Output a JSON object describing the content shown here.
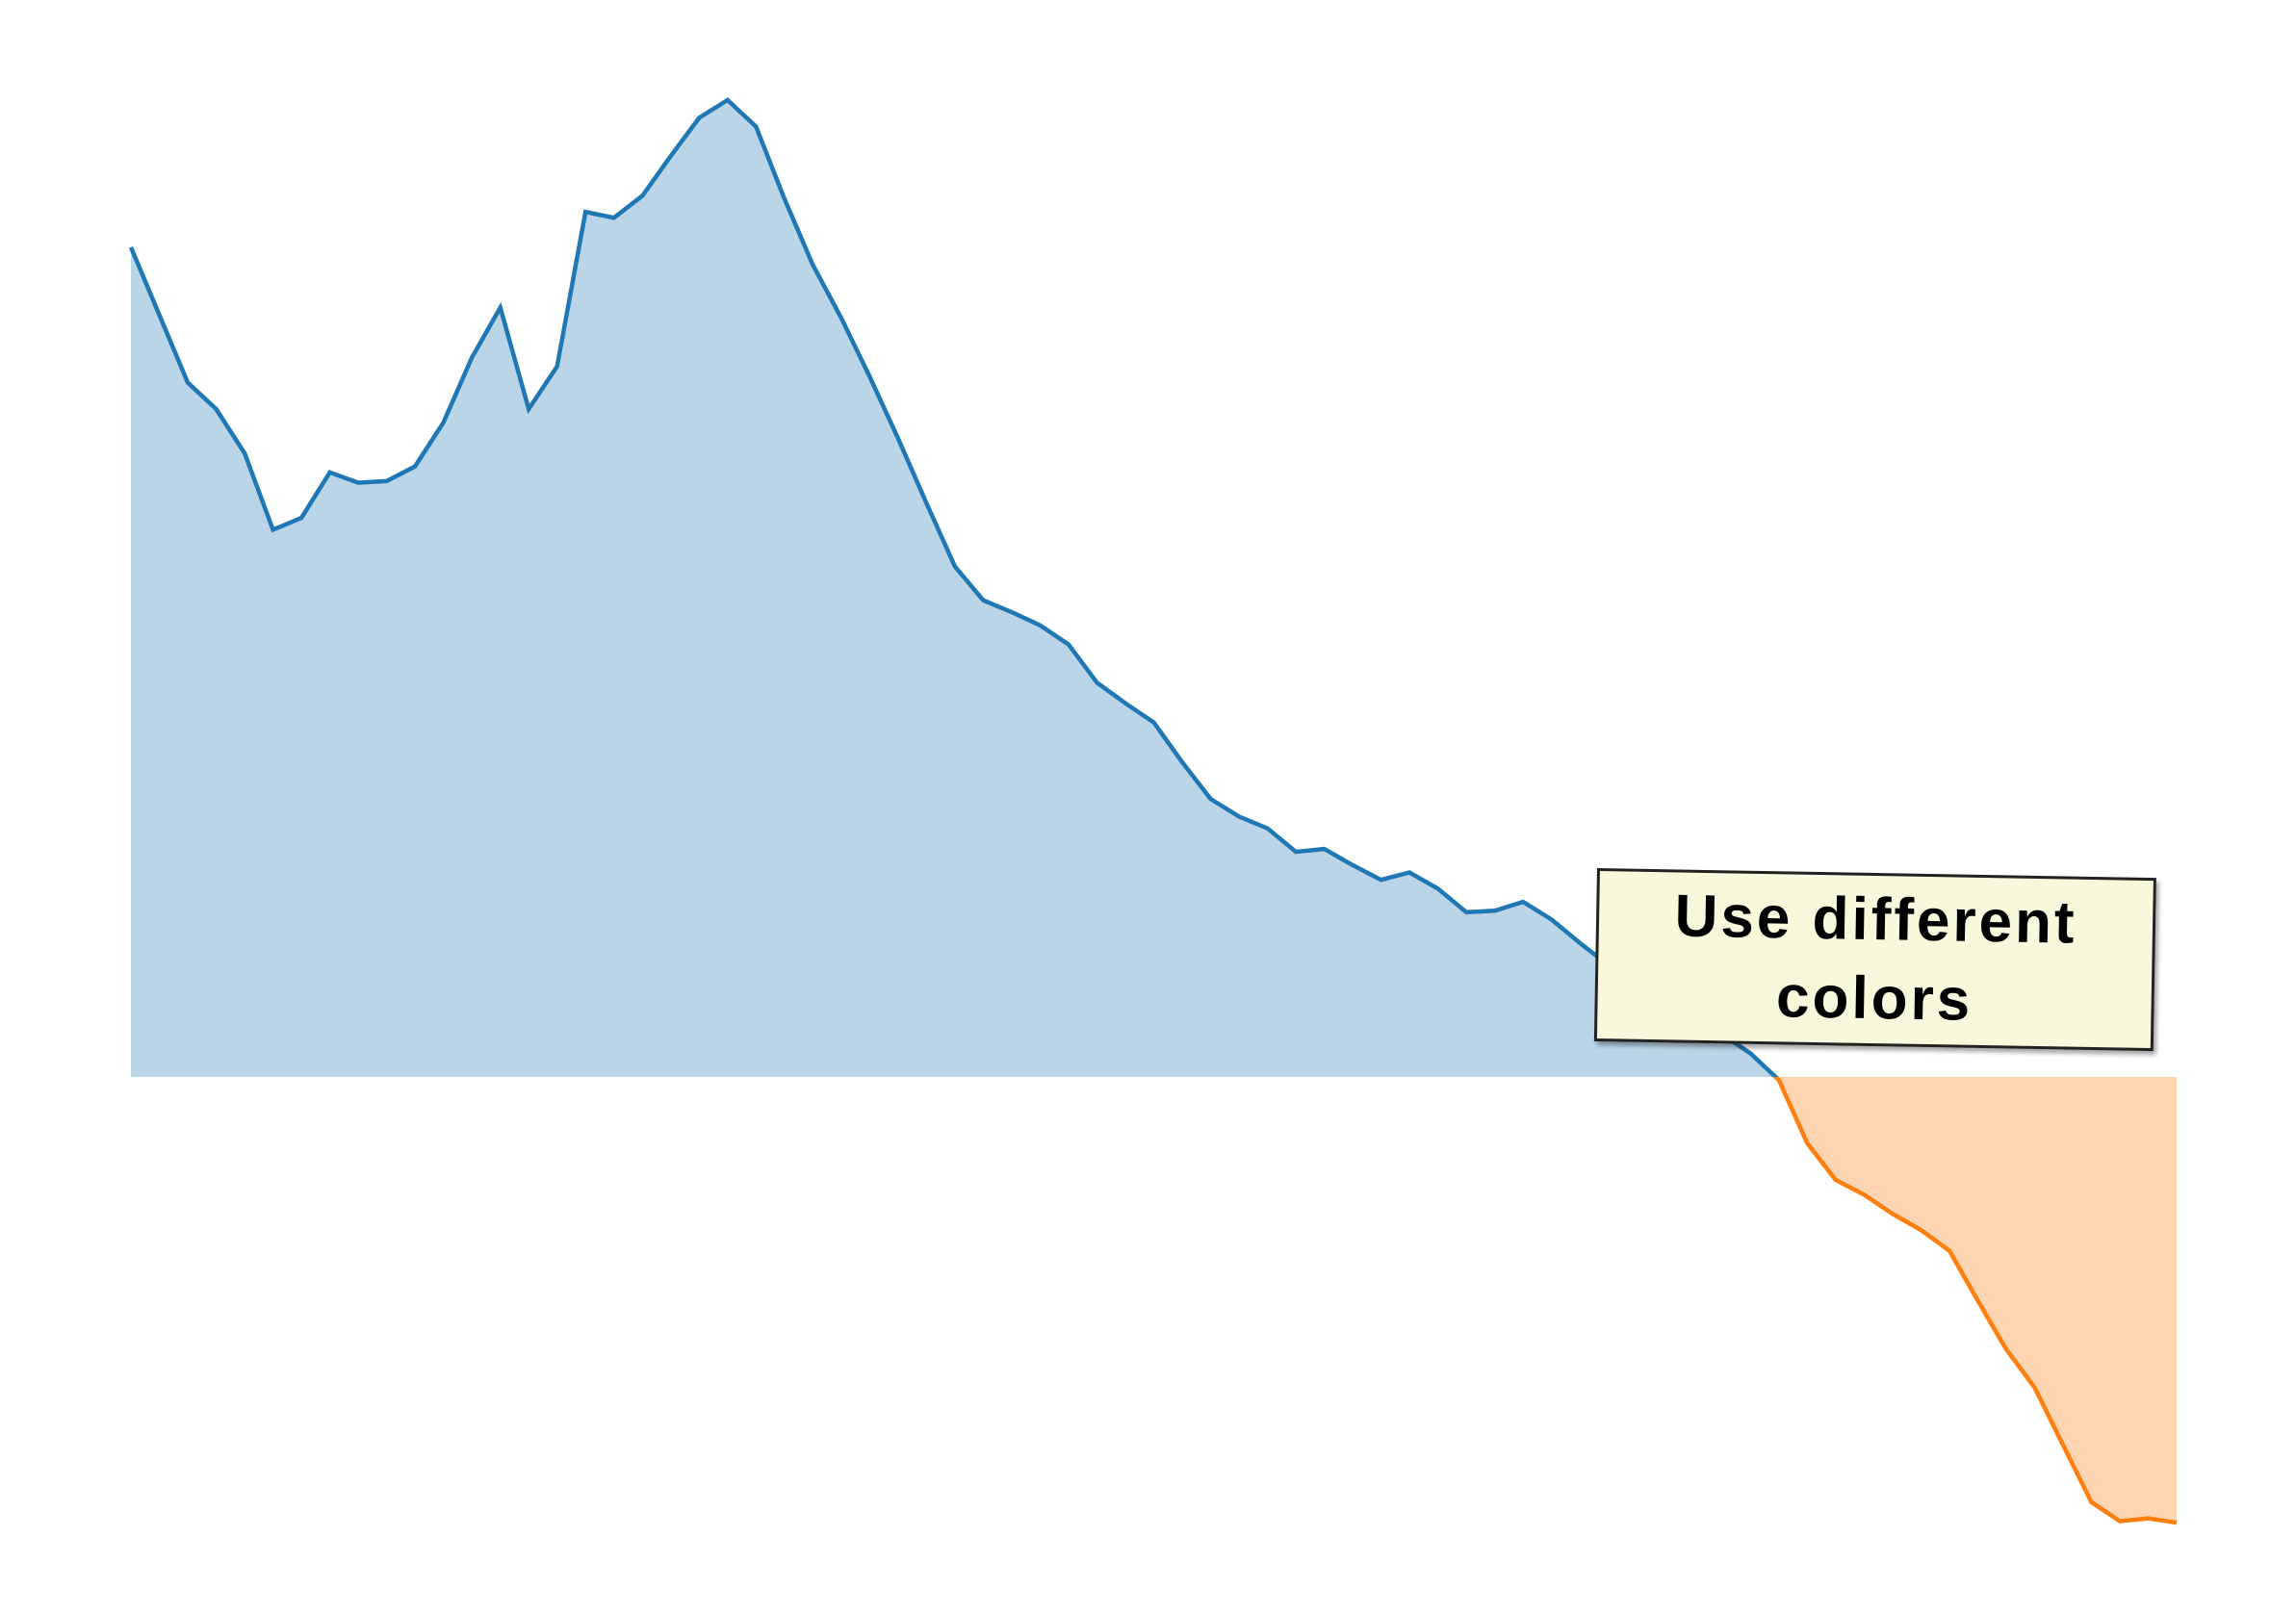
{
  "chart_data": {
    "type": "area",
    "values": [
      56.4,
      51.8,
      47.2,
      45.4,
      42.4,
      37.2,
      38.0,
      41.1,
      40.4,
      40.5,
      41.5,
      44.5,
      48.9,
      52.3,
      45.4,
      48.3,
      58.8,
      58.4,
      59.9,
      62.6,
      65.2,
      66.4,
      64.6,
      59.7,
      55.2,
      51.6,
      47.6,
      43.4,
      39.0,
      34.7,
      32.4,
      31.6,
      30.7,
      29.4,
      26.8,
      25.4,
      24.1,
      21.4,
      18.9,
      17.7,
      16.9,
      15.3,
      15.5,
      14.4,
      13.4,
      13.9,
      12.8,
      11.2,
      11.3,
      11.9,
      10.7,
      9.1,
      7.6,
      6.4,
      5.2,
      4.0,
      2.9,
      1.6,
      -0.2,
      -4.5,
      -7.0,
      -8.0,
      -9.3,
      -10.4,
      -11.8,
      -15.2,
      -18.5,
      -21.1,
      -25.0,
      -28.9,
      -30.2,
      -30.0,
      -30.3
    ],
    "ylim": [
      -35,
      70
    ],
    "positive_color": "#1f77b4",
    "positive_fill": "#bbd5e8",
    "negative_color": "#ff7f0e",
    "negative_fill": "#fed5b3",
    "annotation": "Use different colors"
  }
}
